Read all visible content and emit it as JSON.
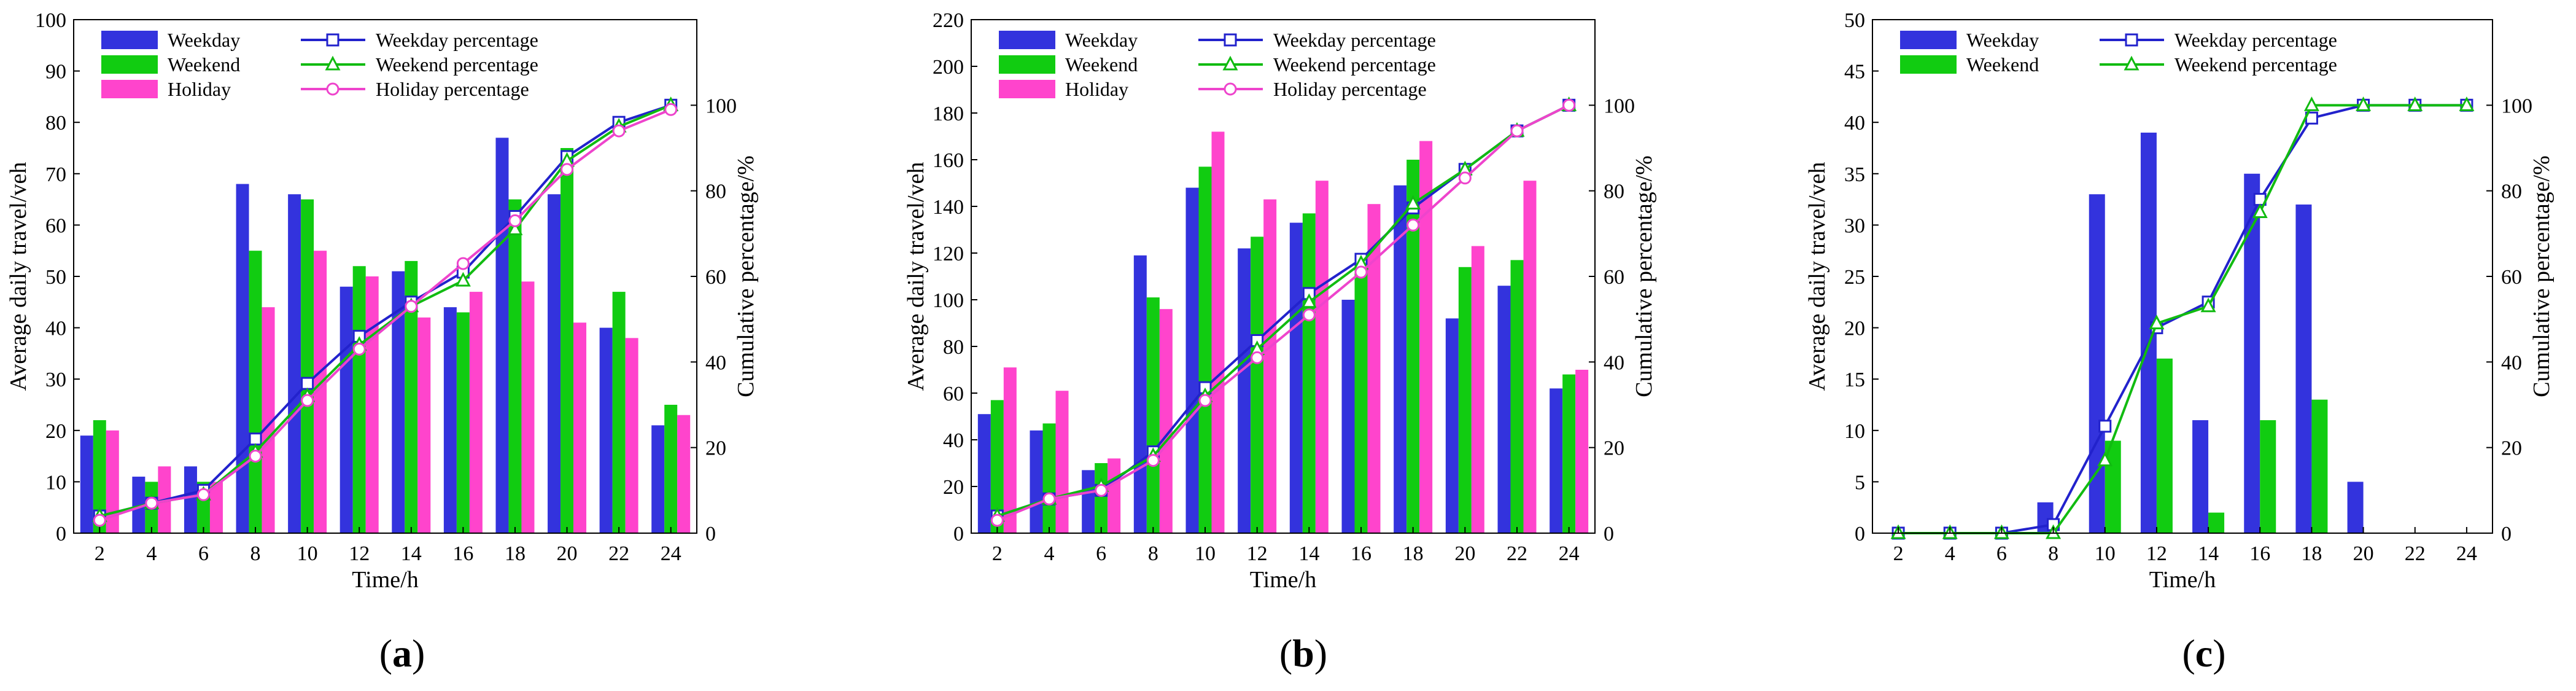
{
  "colors": {
    "weekday": "#3333dd",
    "weekend": "#11cc11",
    "holiday": "#ff44cc",
    "weekday_line": "#2222cc",
    "weekend_line": "#11bb11",
    "holiday_line": "#ee44cc"
  },
  "chart_data": [
    {
      "type": "bar",
      "panel_label": "(a)",
      "panel_letter": "a",
      "xlabel": "Time/h",
      "ylabel": "Average daily travel/veh",
      "y2label": "Cumulative percentage/%",
      "categories": [
        "2",
        "4",
        "6",
        "8",
        "10",
        "12",
        "14",
        "16",
        "18",
        "20",
        "22",
        "24"
      ],
      "ylim": [
        0,
        100
      ],
      "yticks": [
        "0",
        "10",
        "20",
        "30",
        "40",
        "50",
        "60",
        "70",
        "80",
        "90",
        "100"
      ],
      "y2lim": [
        0,
        120
      ],
      "y2ticks": [
        "0",
        "20",
        "40",
        "60",
        "80",
        "100"
      ],
      "legend_bars": [
        "Weekday",
        "Weekend",
        "Holiday"
      ],
      "legend_lines": [
        "Weekday percentage",
        "Weekend percentage",
        "Holiday percentage"
      ],
      "series": [
        {
          "name": "Weekday",
          "key": "weekday",
          "values": [
            19,
            11,
            13,
            68,
            66,
            48,
            51,
            44,
            77,
            66,
            40,
            21
          ]
        },
        {
          "name": "Weekend",
          "key": "weekend",
          "values": [
            22,
            10,
            10,
            55,
            65,
            52,
            53,
            43,
            65,
            75,
            47,
            25
          ]
        },
        {
          "name": "Holiday",
          "key": "holiday",
          "values": [
            20,
            13,
            10,
            44,
            55,
            50,
            42,
            47,
            49,
            41,
            38,
            23
          ]
        }
      ],
      "lines": [
        {
          "name": "Weekday percentage",
          "key": "weekday_line",
          "marker": "square",
          "values": [
            4,
            7,
            10,
            22,
            35,
            46,
            54,
            61,
            74,
            88,
            96,
            100
          ]
        },
        {
          "name": "Weekend percentage",
          "key": "weekend_line",
          "marker": "triangle",
          "values": [
            4,
            7,
            9,
            19,
            32,
            44,
            53,
            59,
            71,
            87,
            95,
            100
          ]
        },
        {
          "name": "Holiday percentage",
          "key": "holiday_line",
          "marker": "circle",
          "values": [
            3,
            7,
            9,
            18,
            31,
            43,
            53,
            63,
            73,
            85,
            94,
            99
          ]
        }
      ]
    },
    {
      "type": "bar",
      "panel_label": "(b)",
      "panel_letter": "b",
      "xlabel": "Time/h",
      "ylabel": "Average daily travel/veh",
      "y2label": "Cumulative percentage/%",
      "categories": [
        "2",
        "4",
        "6",
        "8",
        "10",
        "12",
        "14",
        "16",
        "18",
        "20",
        "22",
        "24"
      ],
      "ylim": [
        0,
        220
      ],
      "yticks": [
        "0",
        "20",
        "40",
        "60",
        "80",
        "100",
        "120",
        "140",
        "160",
        "180",
        "200",
        "220"
      ],
      "y2lim": [
        0,
        120
      ],
      "y2ticks": [
        "0",
        "20",
        "40",
        "60",
        "80",
        "100"
      ],
      "legend_bars": [
        "Weekday",
        "Weekend",
        "Holiday"
      ],
      "legend_lines": [
        "Weekday percentage",
        "Weekend percentage",
        "Holiday percentage"
      ],
      "series": [
        {
          "name": "Weekday",
          "key": "weekday",
          "values": [
            51,
            44,
            27,
            119,
            148,
            122,
            133,
            100,
            149,
            92,
            106,
            62
          ]
        },
        {
          "name": "Weekend",
          "key": "weekend",
          "values": [
            57,
            47,
            30,
            101,
            157,
            127,
            137,
            120,
            160,
            114,
            117,
            68
          ]
        },
        {
          "name": "Holiday",
          "key": "holiday",
          "values": [
            71,
            61,
            32,
            96,
            172,
            143,
            151,
            141,
            168,
            123,
            151,
            70
          ]
        }
      ],
      "lines": [
        {
          "name": "Weekday percentage",
          "key": "weekday_line",
          "marker": "square",
          "values": [
            4,
            8,
            10,
            19,
            34,
            45,
            56,
            64,
            76,
            85,
            94,
            100
          ]
        },
        {
          "name": "Weekend percentage",
          "key": "weekend_line",
          "marker": "triangle",
          "values": [
            4,
            8,
            11,
            18,
            32,
            43,
            54,
            63,
            77,
            85,
            94,
            100
          ]
        },
        {
          "name": "Holiday percentage",
          "key": "holiday_line",
          "marker": "circle",
          "values": [
            3,
            8,
            10,
            17,
            31,
            41,
            51,
            61,
            72,
            83,
            94,
            100
          ]
        }
      ]
    },
    {
      "type": "bar",
      "panel_label": "(c)",
      "panel_letter": "c",
      "xlabel": "Time/h",
      "ylabel": "Average daily travel/veh",
      "y2label": "Cumulative percentage/%",
      "categories": [
        "2",
        "4",
        "6",
        "8",
        "10",
        "12",
        "14",
        "16",
        "18",
        "20",
        "22",
        "24"
      ],
      "ylim": [
        0,
        50
      ],
      "yticks": [
        "0",
        "5",
        "10",
        "15",
        "20",
        "25",
        "30",
        "35",
        "40",
        "45",
        "50"
      ],
      "y2lim": [
        0,
        120
      ],
      "y2ticks": [
        "0",
        "20",
        "40",
        "60",
        "80",
        "100"
      ],
      "legend_bars": [
        "Weekday",
        "Weekend"
      ],
      "legend_lines": [
        "Weekday percentage",
        "Weekend percentage"
      ],
      "series": [
        {
          "name": "Weekday",
          "key": "weekday",
          "values": [
            0,
            0,
            0,
            3,
            33,
            39,
            11,
            35,
            32,
            5,
            0,
            0
          ]
        },
        {
          "name": "Weekend",
          "key": "weekend",
          "values": [
            0,
            0,
            0,
            0,
            9,
            17,
            2,
            11,
            13,
            0,
            0,
            0
          ]
        }
      ],
      "lines": [
        {
          "name": "Weekday percentage",
          "key": "weekday_line",
          "marker": "square",
          "values": [
            0,
            0,
            0,
            2,
            25,
            48,
            54,
            78,
            97,
            100,
            100,
            100
          ]
        },
        {
          "name": "Weekend percentage",
          "key": "weekend_line",
          "marker": "triangle",
          "values": [
            0,
            0,
            0,
            0,
            17,
            49,
            53,
            75,
            100,
            100,
            100,
            100
          ]
        }
      ]
    }
  ]
}
